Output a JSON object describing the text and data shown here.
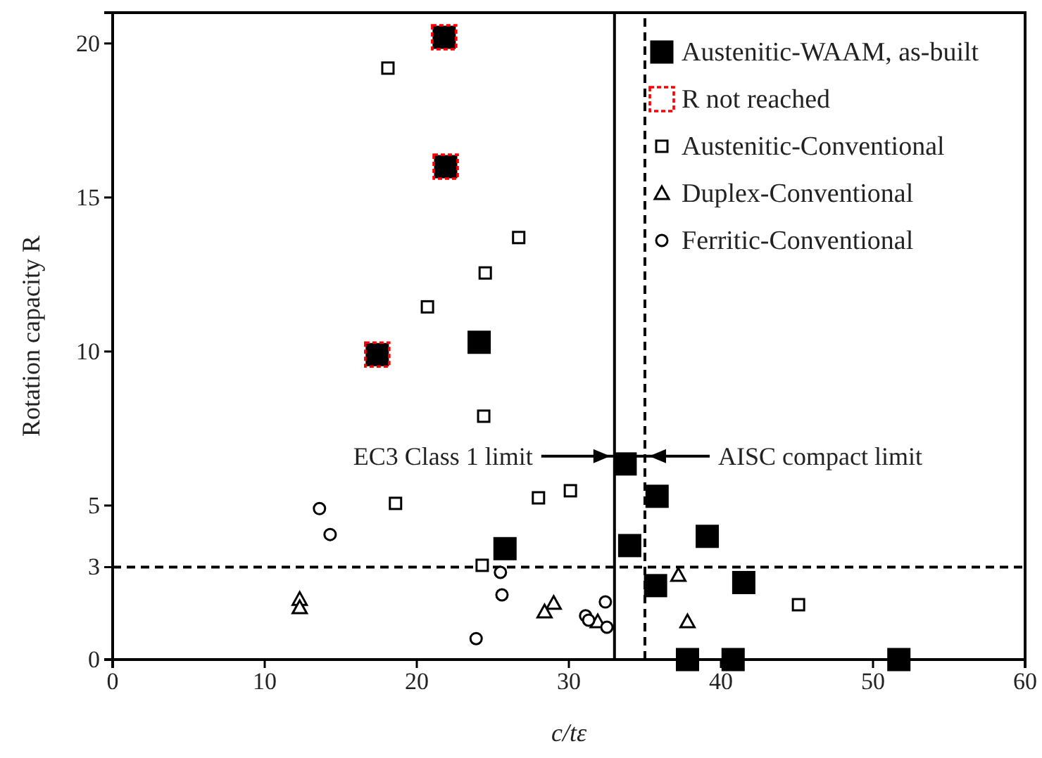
{
  "chart_data": {
    "type": "scatter",
    "xlabel": "c/tε",
    "ylabel": "Rotation capacity R",
    "xlim": [
      0,
      60
    ],
    "xticks": [
      0,
      10,
      20,
      30,
      40,
      50,
      60
    ],
    "ylim": [
      0,
      21
    ],
    "yticks": [
      0,
      3,
      5,
      10,
      15,
      20
    ],
    "grid": false,
    "legend": "top right",
    "ref_lines": [
      {
        "axis": "x",
        "value": 33,
        "label": "EC3 Class 1 limit",
        "line_style": "solid",
        "color": "#000000"
      },
      {
        "axis": "x",
        "value": 35,
        "label": "AISC compact limit",
        "line_style": "dashed",
        "color": "#000000"
      },
      {
        "axis": "y",
        "value": 3,
        "label": null,
        "line_style": "dashed",
        "color": "#000000"
      }
    ],
    "series": [
      {
        "name": "Austenitic-WAAM, as-built",
        "color": "#000000",
        "marker": "square",
        "x": [
          21.8,
          21.9,
          17.4,
          24.1,
          25.8,
          33.7,
          34.0,
          35.8,
          39.1,
          35.7,
          41.5,
          37.8,
          40.8,
          51.7
        ],
        "values": [
          20.2,
          16.0,
          9.9,
          10.3,
          3.6,
          6.35,
          3.7,
          5.3,
          4.0,
          2.4,
          2.5,
          0,
          0,
          0
        ]
      },
      {
        "name": "R not reached",
        "color": "#ff0000",
        "marker": "square",
        "line_style": "dashed",
        "x": [
          21.8,
          21.9,
          17.4
        ],
        "values": [
          20.2,
          16.0,
          9.9
        ]
      },
      {
        "name": "Austenitic-Conventional",
        "color": "#000000",
        "marker": "square",
        "x": [
          18.1,
          26.7,
          24.5,
          20.7,
          24.4,
          18.6,
          28.0,
          30.1,
          24.3,
          45.1
        ],
        "values": [
          19.2,
          13.7,
          12.55,
          11.45,
          7.9,
          5.07,
          5.25,
          5.48,
          3.06,
          1.78
        ]
      },
      {
        "name": "Duplex-Conventional",
        "color": "#000000",
        "marker": "triangle",
        "x": [
          12.3,
          12.3,
          29.0,
          28.4,
          31.9,
          37.2,
          37.8
        ],
        "values": [
          1.96,
          1.69,
          1.83,
          1.55,
          1.23,
          2.74,
          1.23
        ]
      },
      {
        "name": "Ferritic-Conventional",
        "color": "#000000",
        "marker": "circle",
        "x": [
          13.6,
          14.3,
          25.5,
          25.6,
          23.9,
          31.1,
          31.3,
          32.4,
          32.5
        ],
        "values": [
          4.9,
          4.06,
          2.83,
          2.1,
          0.68,
          1.42,
          1.28,
          1.87,
          1.05
        ]
      }
    ]
  }
}
